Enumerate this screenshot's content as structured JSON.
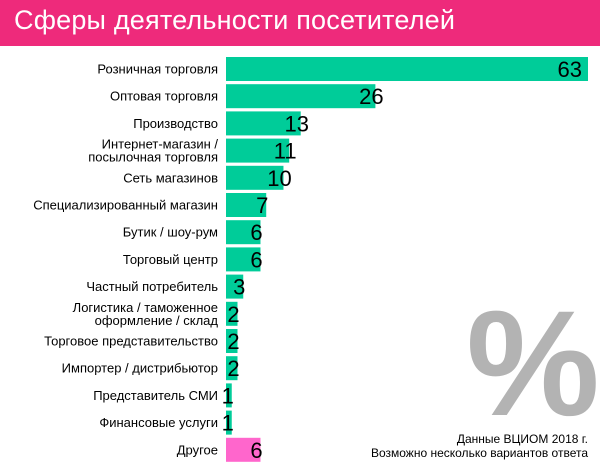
{
  "colors": {
    "title_band": "#ee2a7b",
    "bar": "#00cc99",
    "bar_highlight": "#ff66cc",
    "percent_watermark": "#b3b3b3"
  },
  "watermark_text": "%",
  "note": {
    "line1": "Данные ВЦИОМ 2018 г.",
    "line2": "Возможно несколько вариантов ответа"
  },
  "chart_data": {
    "type": "bar",
    "orientation": "horizontal",
    "title": "Сферы деятельности посетителей",
    "unit": "%",
    "xlim": [
      0,
      63
    ],
    "categories": [
      [
        "Розничная торговля"
      ],
      [
        "Оптовая торговля"
      ],
      [
        "Производство"
      ],
      [
        "Интернет-магазин /",
        "посылочная торговля"
      ],
      [
        "Сеть магазинов"
      ],
      [
        "Специализированный магазин"
      ],
      [
        "Бутик / шоу-рум"
      ],
      [
        "Торговый центр"
      ],
      [
        "Частный потребитель"
      ],
      [
        "Логистика / таможенное",
        "оформление / склад"
      ],
      [
        "Торговое представительство"
      ],
      [
        "Импортер / дистрибьютор"
      ],
      [
        "Представитель СМИ"
      ],
      [
        "Финансовые услуги"
      ],
      [
        "Другое"
      ]
    ],
    "values": [
      63,
      26,
      13,
      11,
      10,
      7,
      6,
      6,
      3,
      2,
      2,
      2,
      1,
      1,
      6
    ],
    "highlight": [
      false,
      false,
      false,
      false,
      false,
      false,
      false,
      false,
      false,
      false,
      false,
      false,
      false,
      false,
      true
    ]
  }
}
